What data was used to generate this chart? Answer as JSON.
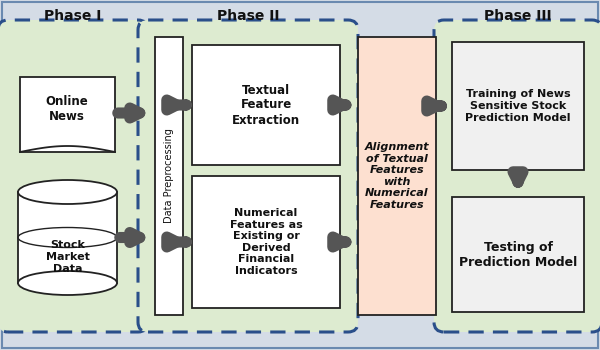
{
  "bg_color": "#d4dce6",
  "outer_border_color": "#6a8ab0",
  "phase_fill": "#ddebd0",
  "phase_border_color": "#2a4f8a",
  "inner_box_fill": "#f0f0f0",
  "inner_box_edge": "#222222",
  "alignment_fill": "#fde0d0",
  "alignment_edge": "#222222",
  "arrow_color": "#555555",
  "text_color": "#111111",
  "phase1_label": "Phase I",
  "phase2_label": "Phase II",
  "phase3_label": "Phase III",
  "online_news_text": "Online\nNews",
  "stock_market_text": "Stock\nMarket\nData",
  "data_prep_text": "Data Preprocessing",
  "textual_feat_text": "Textual\nFeature\nExtraction",
  "numerical_feat_text": "Numerical\nFeatures as\nExisting or\nDerived\nFinancial\nIndicators",
  "alignment_text": "Alignment\nof Textual\nFeatures\nwith\nNumerical\nFeatures",
  "training_text": "Training of News\nSensitive Stock\nPrediction Model",
  "testing_text": "Testing of\nPrediction Model"
}
